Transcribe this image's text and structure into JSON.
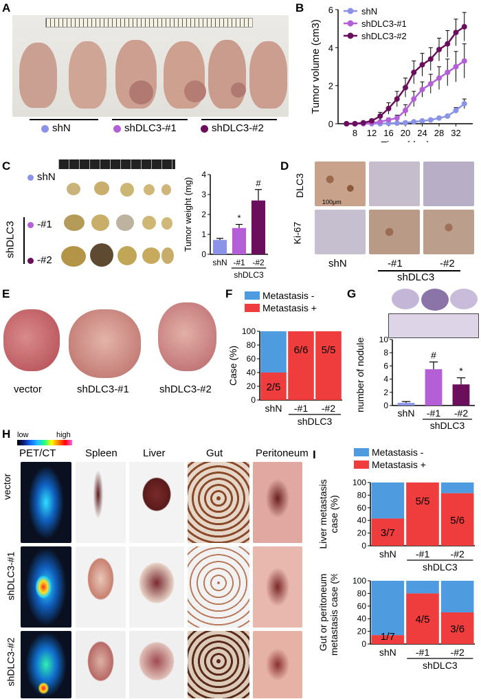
{
  "colors": {
    "shN": "#8a93e8",
    "sh1": "#b45fd6",
    "sh2": "#6b0f5d",
    "blue": "#4f9be0",
    "red": "#ef3c3c"
  },
  "panels": {
    "A": "A",
    "B": "B",
    "C": "C",
    "D": "D",
    "E": "E",
    "F": "F",
    "G": "G",
    "H": "H",
    "I": "I"
  },
  "panelA": {
    "groups": [
      "shN",
      "shDLC3-#1",
      "shDLC3-#2"
    ]
  },
  "panelC": {
    "rows": [
      "shN",
      "-#1",
      "-#2"
    ],
    "vlabel": "shDLC3"
  },
  "panelD": {
    "rows": [
      "DLC3",
      "Ki-67"
    ],
    "cols": [
      "shN",
      "-#1",
      "-#2"
    ],
    "group": "shDLC3",
    "scale": "100μm"
  },
  "panelE": {
    "labels": [
      "vector",
      "shDLC3-#1",
      "shDLC3-#2"
    ]
  },
  "panelH": {
    "heat_low": "low",
    "heat_high": "high",
    "cols": [
      "PET/CT",
      "Spleen",
      "Liver",
      "Gut",
      "Peritoneum"
    ],
    "rows": [
      "vector",
      "shDLC3-#1",
      "shDLC3-#2"
    ]
  },
  "chart_data": [
    {
      "id": "B",
      "type": "line",
      "title": "",
      "xlabel": "Time (day)",
      "ylabel": "Tumor volume (cm3)",
      "xlim": [
        4,
        36
      ],
      "ylim": [
        0,
        6
      ],
      "xticks": [
        "8",
        "12",
        "16",
        "20",
        "24",
        "28",
        "32"
      ],
      "yticks": [
        "0",
        "2",
        "4",
        "6"
      ],
      "x": [
        6,
        8,
        10,
        12,
        14,
        16,
        18,
        20,
        22,
        24,
        26,
        28,
        30,
        32,
        34
      ],
      "series": [
        {
          "name": "shN",
          "values": [
            0,
            0,
            0,
            0,
            0,
            0.02,
            0.03,
            0.05,
            0.1,
            0.15,
            0.2,
            0.3,
            0.4,
            0.7,
            1.05
          ],
          "err": [
            0,
            0,
            0,
            0,
            0,
            0,
            0,
            0,
            0,
            0,
            0,
            0,
            0,
            0.15,
            0.25
          ]
        },
        {
          "name": "shDLC3-#1",
          "values": [
            0,
            0,
            0,
            0.05,
            0.1,
            0.2,
            0.3,
            0.7,
            1.3,
            1.8,
            2.1,
            2.4,
            2.7,
            3.0,
            3.3
          ],
          "err": [
            0,
            0,
            0,
            0,
            0,
            0.1,
            0.15,
            0.3,
            0.4,
            0.4,
            0.5,
            0.6,
            0.7,
            0.8,
            0.9
          ]
        },
        {
          "name": "shDLC3-#2",
          "values": [
            0,
            0,
            0.05,
            0.15,
            0.4,
            0.8,
            1.3,
            1.9,
            2.7,
            3.1,
            3.4,
            3.9,
            4.2,
            4.8,
            5.1
          ],
          "err": [
            0,
            0,
            0,
            0.1,
            0.2,
            0.3,
            0.4,
            0.5,
            0.6,
            0.6,
            0.6,
            0.6,
            0.7,
            0.7,
            0.75
          ]
        }
      ]
    },
    {
      "id": "C",
      "type": "bar",
      "ylabel": "Tumor weight (mg)",
      "categories": [
        "shN",
        "-#1",
        "-#2"
      ],
      "group": "shDLC3",
      "ylim": [
        0,
        4
      ],
      "yticks": [
        "0",
        "1",
        "2",
        "3",
        "4"
      ],
      "values": [
        0.72,
        1.32,
        2.7
      ],
      "err": [
        0.08,
        0.18,
        0.55
      ],
      "marks": [
        "",
        "*",
        "#"
      ]
    },
    {
      "id": "F",
      "type": "bar",
      "stacked": true,
      "ylabel": "Case (%)",
      "categories": [
        "shN",
        "-#1",
        "-#2"
      ],
      "group": "shDLC3",
      "ylim": [
        0,
        100
      ],
      "yticks": [
        "0",
        "20",
        "40",
        "60",
        "80",
        "100"
      ],
      "legend": [
        "Metastasis -",
        "Metastasis +"
      ],
      "positive": [
        40,
        100,
        100
      ],
      "labels": [
        "2/5",
        "6/6",
        "5/5"
      ]
    },
    {
      "id": "G",
      "type": "bar",
      "ylabel": "number of nodules",
      "categories": [
        "shN",
        "-#1",
        "-#2"
      ],
      "group": "shDLC3",
      "ylim": [
        0,
        10
      ],
      "yticks": [
        "0",
        "2",
        "4",
        "6",
        "8",
        "10"
      ],
      "values": [
        0.4,
        5.5,
        3.2
      ],
      "err": [
        0.2,
        1.1,
        1.0
      ],
      "marks": [
        "",
        "#",
        "*"
      ]
    },
    {
      "id": "I1",
      "type": "bar",
      "stacked": true,
      "ylabel": "Liver metastasis case (%)",
      "categories": [
        "shN",
        "-#1",
        "-#2"
      ],
      "group": "shDLC3",
      "ylim": [
        0,
        100
      ],
      "yticks": [
        "0",
        "20",
        "40",
        "60",
        "80",
        "100"
      ],
      "legend": [
        "Metastasis -",
        "Metastasis +"
      ],
      "positive": [
        43,
        100,
        83
      ],
      "labels": [
        "3/7",
        "5/5",
        "5/6"
      ]
    },
    {
      "id": "I2",
      "type": "bar",
      "stacked": true,
      "ylabel": "Gut or peritoneum metastasis case (%)",
      "categories": [
        "shN",
        "-#1",
        "-#2"
      ],
      "group": "shDLC3",
      "ylim": [
        0,
        100
      ],
      "yticks": [
        "0",
        "20",
        "40",
        "60",
        "80",
        "100"
      ],
      "positive": [
        14,
        80,
        50
      ],
      "labels": [
        "1/7",
        "4/5",
        "3/6"
      ]
    }
  ]
}
